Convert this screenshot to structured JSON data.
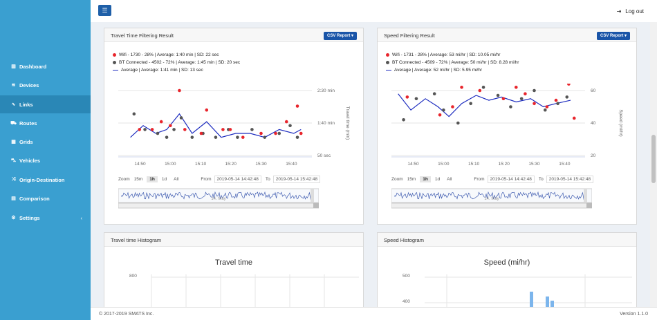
{
  "sidebar": {
    "items": [
      {
        "icon": "map-icon",
        "glyph": "▥",
        "label": "Dashboard"
      },
      {
        "icon": "wifi-icon",
        "glyph": "≋",
        "label": "Devices"
      },
      {
        "icon": "link-icon",
        "glyph": "∿",
        "label": "Links",
        "active": true
      },
      {
        "icon": "road-icon",
        "glyph": "⛟",
        "label": "Routes"
      },
      {
        "icon": "grid-icon",
        "glyph": "▦",
        "label": "Grids"
      },
      {
        "icon": "car-icon",
        "glyph": "⛍",
        "label": "Vehicles"
      },
      {
        "icon": "shuffle-icon",
        "glyph": "⤨",
        "label": "Origin-Destination"
      },
      {
        "icon": "table-icon",
        "glyph": "▤",
        "label": "Comparison"
      },
      {
        "icon": "gear-icon",
        "glyph": "⚙",
        "label": "Settings"
      }
    ],
    "settings_chevron": "‹"
  },
  "header": {
    "menu_glyph": "☰",
    "logout_label": "Log out",
    "logout_glyph": "⇥"
  },
  "colors": {
    "sidebar": "#3a9fd0",
    "active": "#2a87b6",
    "button": "#1a55a8",
    "wifi": "#e8252c",
    "bt": "#555555",
    "avg": "#1c2bbf",
    "histbar": "#7cb5ec"
  },
  "travel_panel": {
    "title": "Travel Time Filtering Result",
    "csv_label": "CSV Report ▾",
    "legend": [
      "Wifi - 1730 - 28% | Average: 1:40 min | SD: 22 sec",
      "BT Connected - 4502 - 72% | Average: 1:45 min | SD: 20 sec",
      "Average | Average: 1:41 min | SD: 13 sec"
    ],
    "y_ticks": [
      "2:30 min",
      "1:40 min",
      "50 sec"
    ],
    "y_title": "Travel time (min)",
    "x_ticks": [
      "14:50",
      "15:00",
      "15:10",
      "15:20",
      "15:30",
      "15:40"
    ],
    "zoom": {
      "label": "Zoom",
      "buttons": [
        "15m",
        "1h",
        "1d",
        "All"
      ],
      "selected": "1h",
      "from_label": "From",
      "from": "2019-05-14 14:42:48",
      "to_label": "To",
      "to": "2019-05-14 15:42:48"
    },
    "navigator_label": "14. May"
  },
  "speed_panel": {
    "title": "Speed Filtering Result",
    "csv_label": "CSV Report ▾",
    "legend": [
      "Wifi - 1731 - 28% | Average: 53 mi/hr | SD: 10.05 mi/hr",
      "BT Connected - 4509 - 72% | Average: 50 mi/hr | SD: 8.28 mi/hr",
      "Average | Average: 52 mi/hr | SD: 5.95 mi/hr"
    ],
    "y_ticks": [
      "60",
      "40",
      "20"
    ],
    "y_title": "Speed (mi/hr)",
    "x_ticks": [
      "14:50",
      "15:00",
      "15:10",
      "15:20",
      "15:30",
      "15:40"
    ],
    "zoom": {
      "label": "Zoom",
      "buttons": [
        "15m",
        "1h",
        "1d",
        "All"
      ],
      "selected": "1h",
      "from_label": "From",
      "from": "2019-05-14 14:42:48",
      "to_label": "To",
      "to": "2019-05-14 15:42:48"
    },
    "navigator_label": "14. May"
  },
  "travel_hist": {
    "panel_title": "Travel time Histogram",
    "chart_title": "Travel time",
    "y_tick": "800"
  },
  "speed_hist": {
    "panel_title": "Speed Histogram",
    "chart_title": "Speed (mi/hr)",
    "y_ticks": [
      "500",
      "400"
    ]
  },
  "footer": {
    "copyright": "© 2017-2019 SMATS Inc.",
    "version": "Version 1.1.0"
  },
  "chart_data": [
    {
      "type": "scatter",
      "title": "",
      "xlabel": "",
      "ylabel": "Travel time (min)",
      "x_range": [
        "14:42:48",
        "15:42:48"
      ],
      "y_ticks": [
        "50 sec",
        "1:40 min",
        "2:30 min"
      ],
      "series": [
        {
          "name": "Wifi",
          "color": "#e8252c",
          "x": [
            14.83,
            14.9,
            14.95,
            15.0,
            15.05,
            15.08,
            15.17,
            15.2,
            15.29,
            15.33,
            15.4,
            15.5,
            15.58,
            15.64,
            15.7,
            15.72
          ],
          "y": [
            1.5,
            1.5,
            1.7,
            1.6,
            2.5,
            1.5,
            1.4,
            2.0,
            1.5,
            1.5,
            1.3,
            1.4,
            1.4,
            1.7,
            2.1,
            1.4
          ]
        },
        {
          "name": "BT Connected",
          "color": "#555555",
          "x": [
            14.8,
            14.86,
            14.93,
            14.98,
            15.02,
            15.06,
            15.12,
            15.18,
            15.25,
            15.32,
            15.37,
            15.45,
            15.52,
            15.6,
            15.66,
            15.7
          ],
          "y": [
            1.9,
            1.5,
            1.4,
            1.3,
            1.5,
            1.8,
            1.3,
            1.4,
            1.3,
            1.5,
            1.3,
            1.5,
            1.3,
            1.4,
            1.6,
            1.3
          ]
        },
        {
          "name": "Average",
          "color": "#1c2bbf",
          "x": [
            14.78,
            14.85,
            14.92,
            14.98,
            15.05,
            15.12,
            15.2,
            15.28,
            15.36,
            15.44,
            15.52,
            15.6,
            15.68,
            15.72
          ],
          "y": [
            1.3,
            1.6,
            1.4,
            1.5,
            1.9,
            1.4,
            1.7,
            1.3,
            1.4,
            1.4,
            1.3,
            1.5,
            1.4,
            1.5
          ]
        }
      ]
    },
    {
      "type": "scatter",
      "title": "",
      "xlabel": "",
      "ylabel": "Speed (mi/hr)",
      "x_range": [
        "14:42:48",
        "15:42:48"
      ],
      "y_ticks": [
        20,
        40,
        60
      ],
      "series": [
        {
          "name": "Wifi",
          "color": "#e8252c",
          "x": [
            14.8,
            14.9,
            14.98,
            15.05,
            15.1,
            15.2,
            15.27,
            15.33,
            15.4,
            15.45,
            15.5,
            15.57,
            15.62,
            15.69,
            15.72
          ],
          "y": [
            56,
            68,
            45,
            50,
            62,
            60,
            70,
            55,
            62,
            58,
            52,
            50,
            54,
            64,
            43
          ],
          "unit": "mi/hr"
        },
        {
          "name": "BT Connected",
          "color": "#555555",
          "x": [
            14.78,
            14.85,
            14.95,
            15.0,
            15.08,
            15.15,
            15.22,
            15.3,
            15.37,
            15.43,
            15.5,
            15.56,
            15.63,
            15.68
          ],
          "y": [
            42,
            55,
            58,
            48,
            40,
            52,
            62,
            57,
            50,
            55,
            60,
            48,
            52,
            56
          ],
          "unit": "mi/hr"
        },
        {
          "name": "Average",
          "color": "#1c2bbf",
          "x": [
            14.75,
            14.82,
            14.9,
            14.97,
            15.03,
            15.1,
            15.18,
            15.25,
            15.32,
            15.4,
            15.48,
            15.55,
            15.62,
            15.7
          ],
          "y": [
            58,
            48,
            55,
            50,
            44,
            52,
            57,
            54,
            56,
            53,
            55,
            50,
            52,
            54
          ],
          "unit": "mi/hr"
        }
      ]
    }
  ]
}
